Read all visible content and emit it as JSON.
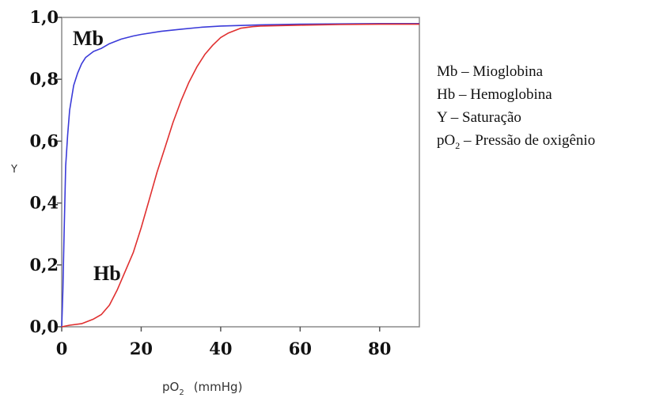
{
  "chart_data": {
    "type": "line",
    "xlabel": "pO",
    "xlabel_sub": "2",
    "xlabel_unit": "(mmHg)",
    "ylabel": "Y",
    "xlim": [
      0,
      90
    ],
    "ylim": [
      0,
      1.0
    ],
    "x_ticks": [
      0,
      20,
      40,
      60,
      80
    ],
    "x_tick_labels": [
      "0",
      "20",
      "40",
      "60",
      "80"
    ],
    "y_ticks": [
      0,
      0.2,
      0.4,
      0.6,
      0.8,
      1.0
    ],
    "y_tick_labels": [
      "0,0",
      "0,2",
      "0,4",
      "0,6",
      "0,8",
      "1,0"
    ],
    "grid": false,
    "series": [
      {
        "name": "Mb",
        "color": "#3b3bd9",
        "x": [
          0,
          0.3,
          0.6,
          1,
          1.5,
          2,
          3,
          4,
          5,
          6,
          8,
          10,
          12,
          15,
          18,
          20,
          25,
          30,
          35,
          40,
          50,
          60,
          70,
          80,
          90
        ],
        "y": [
          0.0,
          0.12,
          0.3,
          0.52,
          0.62,
          0.7,
          0.78,
          0.82,
          0.85,
          0.87,
          0.89,
          0.9,
          0.915,
          0.93,
          0.94,
          0.945,
          0.955,
          0.962,
          0.968,
          0.972,
          0.976,
          0.978,
          0.979,
          0.98,
          0.98
        ]
      },
      {
        "name": "Hb",
        "color": "#e03030",
        "x": [
          0,
          2,
          5,
          8,
          10,
          12,
          14,
          16,
          18,
          20,
          22,
          24,
          26,
          28,
          30,
          32,
          34,
          36,
          38,
          40,
          42,
          45,
          48,
          50,
          60,
          70,
          80,
          90
        ],
        "y": [
          0.0,
          0.005,
          0.01,
          0.025,
          0.04,
          0.07,
          0.12,
          0.18,
          0.24,
          0.32,
          0.41,
          0.5,
          0.58,
          0.66,
          0.73,
          0.79,
          0.84,
          0.88,
          0.91,
          0.935,
          0.95,
          0.965,
          0.97,
          0.972,
          0.975,
          0.977,
          0.978,
          0.978
        ]
      }
    ],
    "curve_labels": [
      "Mb",
      "Hb"
    ]
  },
  "legend": {
    "items": [
      {
        "abbr": "Mb",
        "sep": " – ",
        "text": "Mioglobina"
      },
      {
        "abbr": "Hb",
        "sep": " – ",
        "text": "Hemoglobina"
      },
      {
        "abbr": "Y",
        "sep": " – ",
        "text": "Saturação"
      },
      {
        "abbr": "pO",
        "sub": "2",
        "sep": " – ",
        "text": "Pressão de oxigênio"
      }
    ]
  }
}
